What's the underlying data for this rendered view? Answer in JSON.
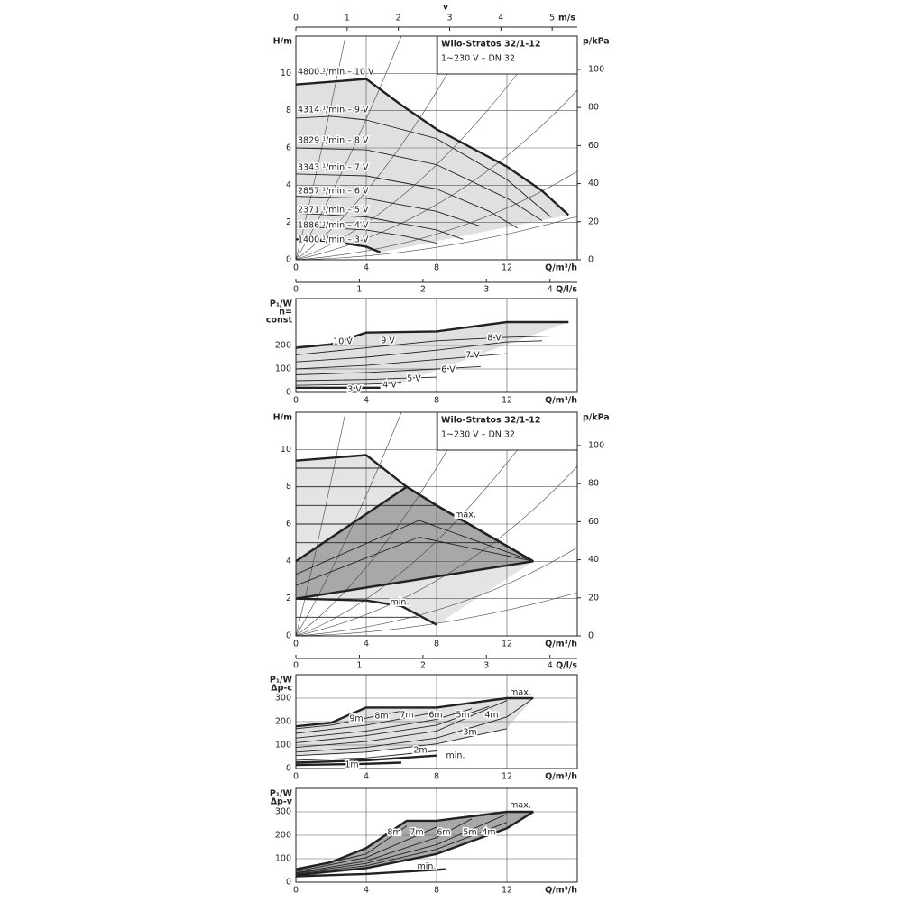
{
  "chart_data": [
    {
      "type": "line",
      "title": "Wilo-Stratos 32/1-12",
      "subtitle": "1~230 V – DN 32",
      "ylabel": [
        "H/m"
      ],
      "xlabel": "Q/m³/h",
      "y2label": "p/kPa",
      "x2label": "v",
      "x2unit": "m/s",
      "xlim": [
        0,
        16
      ],
      "xticks": [
        0,
        4,
        8,
        12
      ],
      "ylim": [
        0,
        12
      ],
      "yticks": [
        0,
        2,
        4,
        6,
        8,
        10
      ],
      "y2lim": [
        0,
        117.5
      ],
      "y2ticks": [
        0,
        20,
        40,
        60,
        80,
        100
      ],
      "x2lim": [
        0,
        5.49
      ],
      "x2ticks": [
        0,
        1,
        2,
        3,
        4,
        5
      ],
      "grid": true,
      "fills": [
        {
          "between": [
            0,
            7
          ],
          "color": "#e0e0e0"
        }
      ],
      "series": [
        {
          "name": "4800 ¹/min – 10 V",
          "color": "#222",
          "thick": true,
          "x": [
            0,
            4,
            6,
            8,
            10,
            12,
            14,
            15.5
          ],
          "values": [
            9.4,
            9.7,
            8.3,
            7,
            6,
            5,
            3.7,
            2.4
          ]
        },
        {
          "name": "4314 ¹/min – 9 V",
          "color": "#222",
          "x": [
            0,
            2,
            4,
            8,
            12,
            14.5
          ],
          "values": [
            7.6,
            7.7,
            7.5,
            6.5,
            4.3,
            2.3
          ]
        },
        {
          "name": "3829 ¹/min – 8 V",
          "color": "#222",
          "x": [
            0,
            4,
            8,
            12,
            14
          ],
          "values": [
            6,
            5.9,
            5.1,
            3.3,
            2.1
          ]
        },
        {
          "name": "3343 ¹/min – 7 V",
          "color": "#222",
          "x": [
            0,
            4,
            8,
            11,
            12.6
          ],
          "values": [
            4.6,
            4.5,
            3.8,
            2.6,
            1.7
          ]
        },
        {
          "name": "2857 ¹/min – 6 V",
          "color": "#222",
          "x": [
            0,
            4,
            8,
            10.5
          ],
          "values": [
            3.4,
            3.3,
            2.6,
            1.8
          ]
        },
        {
          "name": "2371 ¹/min – 5 V",
          "color": "#222",
          "x": [
            0,
            4,
            8,
            9.5
          ],
          "values": [
            2.5,
            2.3,
            1.6,
            1.1
          ]
        },
        {
          "name": "1886 ¹/min – 4 V",
          "color": "#222",
          "x": [
            0,
            4,
            6,
            8
          ],
          "values": [
            1.8,
            1.6,
            1.3,
            0.9
          ]
        },
        {
          "name": "1400 ¹/min – 3 V",
          "color": "#222",
          "thick": true,
          "x": [
            0,
            2,
            4,
            4.8
          ],
          "values": [
            1.1,
            1.0,
            0.7,
            0.4
          ]
        }
      ]
    },
    {
      "type": "line",
      "ylabel": [
        "P₁/W",
        "n=",
        "const"
      ],
      "xlabel": "Q/m³/h",
      "x2label": "Q/l/s",
      "xlim": [
        0,
        16
      ],
      "xticks": [
        0,
        4,
        8,
        12
      ],
      "ylim": [
        0,
        400
      ],
      "yticks": [
        0,
        100,
        200
      ],
      "x2lim": [
        0,
        4.43
      ],
      "x2ticks": [
        0,
        1,
        2,
        3,
        4
      ],
      "grid": true,
      "fills": [
        {
          "between": [
            0,
            6
          ],
          "color": "#e0e0e0"
        }
      ],
      "series": [
        {
          "name": "10 V",
          "color": "#222",
          "thick": true,
          "x": [
            0,
            2,
            4,
            8,
            12,
            15.5
          ],
          "values": [
            190,
            205,
            255,
            260,
            300,
            300
          ]
        },
        {
          "name": "9 V",
          "color": "#222",
          "x": [
            0,
            4,
            8,
            12,
            14.5
          ],
          "values": [
            160,
            190,
            220,
            235,
            240
          ]
        },
        {
          "name": "8 V",
          "color": "#222",
          "x": [
            0,
            4,
            8,
            12,
            14
          ],
          "values": [
            130,
            150,
            180,
            215,
            220
          ]
        },
        {
          "name": "7 V",
          "color": "#222",
          "x": [
            0,
            4,
            8,
            12
          ],
          "values": [
            100,
            115,
            140,
            165
          ]
        },
        {
          "name": "6 V",
          "color": "#222",
          "x": [
            0,
            4,
            8,
            10.5
          ],
          "values": [
            75,
            85,
            100,
            110
          ]
        },
        {
          "name": "5 V",
          "color": "#222",
          "x": [
            0,
            4,
            8
          ],
          "values": [
            50,
            55,
            65
          ]
        },
        {
          "name": "4 V",
          "color": "#222",
          "x": [
            0,
            4,
            6
          ],
          "values": [
            30,
            35,
            40
          ]
        },
        {
          "name": "3 V",
          "color": "#222",
          "thick": true,
          "x": [
            0,
            4,
            4.8
          ],
          "values": [
            20,
            20,
            20
          ]
        }
      ]
    },
    {
      "type": "line",
      "title": "Wilo-Stratos 32/1-12",
      "subtitle": "1~230 V – DN 32",
      "ylabel": [
        "H/m"
      ],
      "xlabel": "Q/m³/h",
      "y2label": "p/kPa",
      "xlim": [
        0,
        16
      ],
      "xticks": [
        0,
        4,
        8,
        12
      ],
      "ylim": [
        0,
        12
      ],
      "yticks": [
        0,
        2,
        4,
        6,
        8,
        10
      ],
      "y2lim": [
        0,
        117.5
      ],
      "y2ticks": [
        0,
        20,
        40,
        60,
        80,
        100
      ],
      "grid": true,
      "fills": [
        {
          "between": [
            0,
            3
          ],
          "color": "#e4e4e4"
        },
        {
          "between": [
            1,
            2
          ],
          "color": "#a8a8a8"
        }
      ],
      "series": [
        {
          "name": "max.",
          "color": "#222",
          "thick": true,
          "x": [
            0,
            4,
            6.3,
            8,
            13.5
          ],
          "values": [
            9.4,
            9.7,
            8,
            7,
            4
          ]
        },
        {
          "color": "#222",
          "thick": true,
          "x": [
            0,
            6.3,
            8,
            13.5
          ],
          "values": [
            4,
            8,
            7,
            4
          ]
        },
        {
          "color": "#222",
          "thick": true,
          "x": [
            0,
            13.5
          ],
          "values": [
            2,
            4
          ]
        },
        {
          "name": "min.",
          "color": "#222",
          "thick": true,
          "x": [
            0,
            4,
            6,
            8
          ],
          "values": [
            2,
            1.9,
            1.6,
            0.6
          ]
        },
        {
          "color": "#222",
          "x": [
            0,
            7,
            13.5
          ],
          "values": [
            2.7,
            5.3,
            4
          ]
        },
        {
          "color": "#222",
          "x": [
            0,
            7,
            13.5
          ],
          "values": [
            3.3,
            6.2,
            4
          ]
        },
        {
          "color": "#222",
          "x": [
            0,
            4.95
          ],
          "values": [
            9,
            9
          ]
        },
        {
          "color": "#222",
          "x": [
            0,
            6.3
          ],
          "values": [
            8,
            8
          ]
        },
        {
          "color": "#222",
          "x": [
            0,
            8
          ],
          "values": [
            7,
            7
          ]
        },
        {
          "color": "#222",
          "x": [
            0,
            9.9
          ],
          "values": [
            6,
            6
          ]
        },
        {
          "color": "#222",
          "x": [
            0,
            11.7
          ],
          "values": [
            5,
            5
          ]
        },
        {
          "color": "#222",
          "x": [
            0,
            7
          ],
          "values": [
            1,
            1
          ]
        }
      ]
    },
    {
      "type": "line",
      "ylabel": [
        "P₁/W",
        "Δp-c"
      ],
      "xlabel": "Q/m³/h",
      "x2label": "Q/l/s",
      "xlim": [
        0,
        16
      ],
      "xticks": [
        0,
        4,
        8,
        12
      ],
      "ylim": [
        0,
        400
      ],
      "yticks": [
        0,
        100,
        200,
        300
      ],
      "x2lim": [
        0,
        4.43
      ],
      "x2ticks": [
        0,
        1,
        2,
        3,
        4
      ],
      "grid": true,
      "fills": [
        {
          "between": [
            0,
            7
          ],
          "color": "#e0e0e0"
        }
      ],
      "series": [
        {
          "name": "max.",
          "color": "#222",
          "thick": true,
          "x": [
            0,
            2,
            4,
            8,
            12,
            13.5
          ],
          "values": [
            180,
            195,
            260,
            260,
            300,
            300
          ]
        },
        {
          "name": "9m",
          "color": "#222",
          "x": [
            0,
            2,
            4,
            6
          ],
          "values": [
            170,
            185,
            215,
            245
          ]
        },
        {
          "name": "8m",
          "color": "#222",
          "x": [
            0,
            4,
            8
          ],
          "values": [
            150,
            185,
            240
          ]
        },
        {
          "name": "7m",
          "color": "#222",
          "x": [
            0,
            4,
            8,
            10
          ],
          "values": [
            130,
            160,
            210,
            255
          ]
        },
        {
          "name": "6m",
          "color": "#222",
          "x": [
            0,
            4,
            8,
            11
          ],
          "values": [
            110,
            140,
            185,
            265
          ]
        },
        {
          "name": "5m",
          "color": "#222",
          "x": [
            0,
            4,
            8,
            12
          ],
          "values": [
            90,
            115,
            160,
            290
          ]
        },
        {
          "name": "4m",
          "color": "#222",
          "x": [
            0,
            4,
            8,
            12,
            13.5
          ],
          "values": [
            70,
            90,
            130,
            220,
            300
          ]
        },
        {
          "name": "3m",
          "color": "#222",
          "x": [
            0,
            4,
            8,
            12
          ],
          "values": [
            55,
            70,
            105,
            170
          ]
        },
        {
          "name": "2m",
          "color": "#222",
          "x": [
            0,
            4,
            8
          ],
          "values": [
            35,
            45,
            75
          ]
        },
        {
          "name": "min.",
          "color": "#222",
          "thick": true,
          "x": [
            0,
            4,
            8
          ],
          "values": [
            25,
            35,
            55
          ]
        },
        {
          "name": "1m",
          "color": "#222",
          "thick": true,
          "x": [
            0,
            4,
            6
          ],
          "values": [
            15,
            20,
            25
          ]
        }
      ]
    },
    {
      "type": "line",
      "ylabel": [
        "P₁/W",
        "Δp-v"
      ],
      "xlabel": "Q/m³/h",
      "xlim": [
        0,
        16
      ],
      "xticks": [
        0,
        4,
        8,
        12
      ],
      "ylim": [
        0,
        400
      ],
      "yticks": [
        0,
        100,
        200,
        300
      ],
      "grid": true,
      "fills": [
        {
          "between": [
            0,
            1
          ],
          "color": "#a8a8a8"
        }
      ],
      "series": [
        {
          "name": "max.",
          "color": "#222",
          "thick": true,
          "x": [
            0,
            2,
            4,
            6.3,
            8,
            12,
            13.5
          ],
          "values": [
            55,
            85,
            145,
            262,
            262,
            300,
            300
          ]
        },
        {
          "color": "#222",
          "thick": true,
          "x": [
            0,
            4,
            8,
            12,
            13.5
          ],
          "values": [
            30,
            60,
            120,
            230,
            300
          ]
        },
        {
          "name": "8m",
          "color": "#222",
          "x": [
            0,
            4,
            6.3
          ],
          "values": [
            50,
            120,
            240
          ]
        },
        {
          "name": "7m",
          "color": "#222",
          "x": [
            0,
            4,
            8
          ],
          "values": [
            45,
            105,
            235
          ]
        },
        {
          "name": "6m",
          "color": "#222",
          "x": [
            0,
            4,
            8,
            10
          ],
          "values": [
            40,
            90,
            190,
            270
          ]
        },
        {
          "name": "5m",
          "color": "#222",
          "x": [
            0,
            4,
            8,
            12
          ],
          "values": [
            38,
            80,
            160,
            290
          ]
        },
        {
          "name": "4m",
          "color": "#222",
          "x": [
            0,
            4,
            8,
            12
          ],
          "values": [
            35,
            70,
            140,
            255
          ]
        },
        {
          "name": "min.",
          "color": "#222",
          "thick": true,
          "x": [
            0,
            4,
            8.5
          ],
          "values": [
            25,
            35,
            55
          ]
        }
      ]
    }
  ]
}
